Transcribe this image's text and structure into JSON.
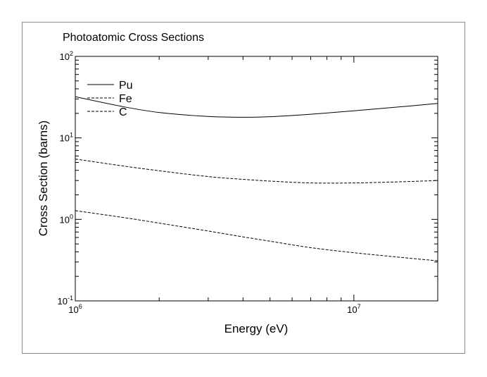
{
  "chart_data": {
    "type": "line",
    "title": "Photoatomic Cross Sections",
    "xlabel": "Energy (eV)",
    "ylabel": "Cross Section (barns)",
    "x_scale": "log",
    "y_scale": "log",
    "xlim": [
      1000000,
      20000000
    ],
    "ylim": [
      0.1,
      100
    ],
    "x_ticks": [
      {
        "base": "10",
        "exp": "6",
        "value": 1000000
      },
      {
        "base": "10",
        "exp": "7",
        "value": 10000000
      }
    ],
    "y_ticks": [
      {
        "base": "10",
        "exp": "-1",
        "value": 0.1
      },
      {
        "base": "10",
        "exp": "0",
        "value": 1
      },
      {
        "base": "10",
        "exp": "1",
        "value": 10
      },
      {
        "base": "10",
        "exp": "2",
        "value": 100
      }
    ],
    "grid": false,
    "legend_position": "top-left",
    "series": [
      {
        "name": "Pu",
        "style": "solid",
        "x": [
          1000000,
          1500000,
          2000000,
          3000000,
          4000000,
          5000000,
          7000000,
          10000000,
          15000000,
          20000000
        ],
        "y": [
          32,
          24,
          20.5,
          18.3,
          17.9,
          18.2,
          19.5,
          21.5,
          24.2,
          26.5
        ]
      },
      {
        "name": "Fe",
        "style": "dashed",
        "x": [
          1000000,
          1500000,
          2000000,
          3000000,
          4000000,
          5000000,
          7000000,
          10000000,
          15000000,
          20000000
        ],
        "y": [
          5.5,
          4.5,
          3.95,
          3.35,
          3.1,
          2.95,
          2.8,
          2.8,
          2.9,
          3.0
        ]
      },
      {
        "name": "C",
        "style": "dashed",
        "x": [
          1000000,
          1500000,
          2000000,
          3000000,
          4000000,
          5000000,
          7000000,
          10000000,
          15000000,
          20000000
        ],
        "y": [
          1.28,
          1.05,
          0.9,
          0.72,
          0.61,
          0.54,
          0.45,
          0.39,
          0.34,
          0.31
        ]
      }
    ]
  }
}
